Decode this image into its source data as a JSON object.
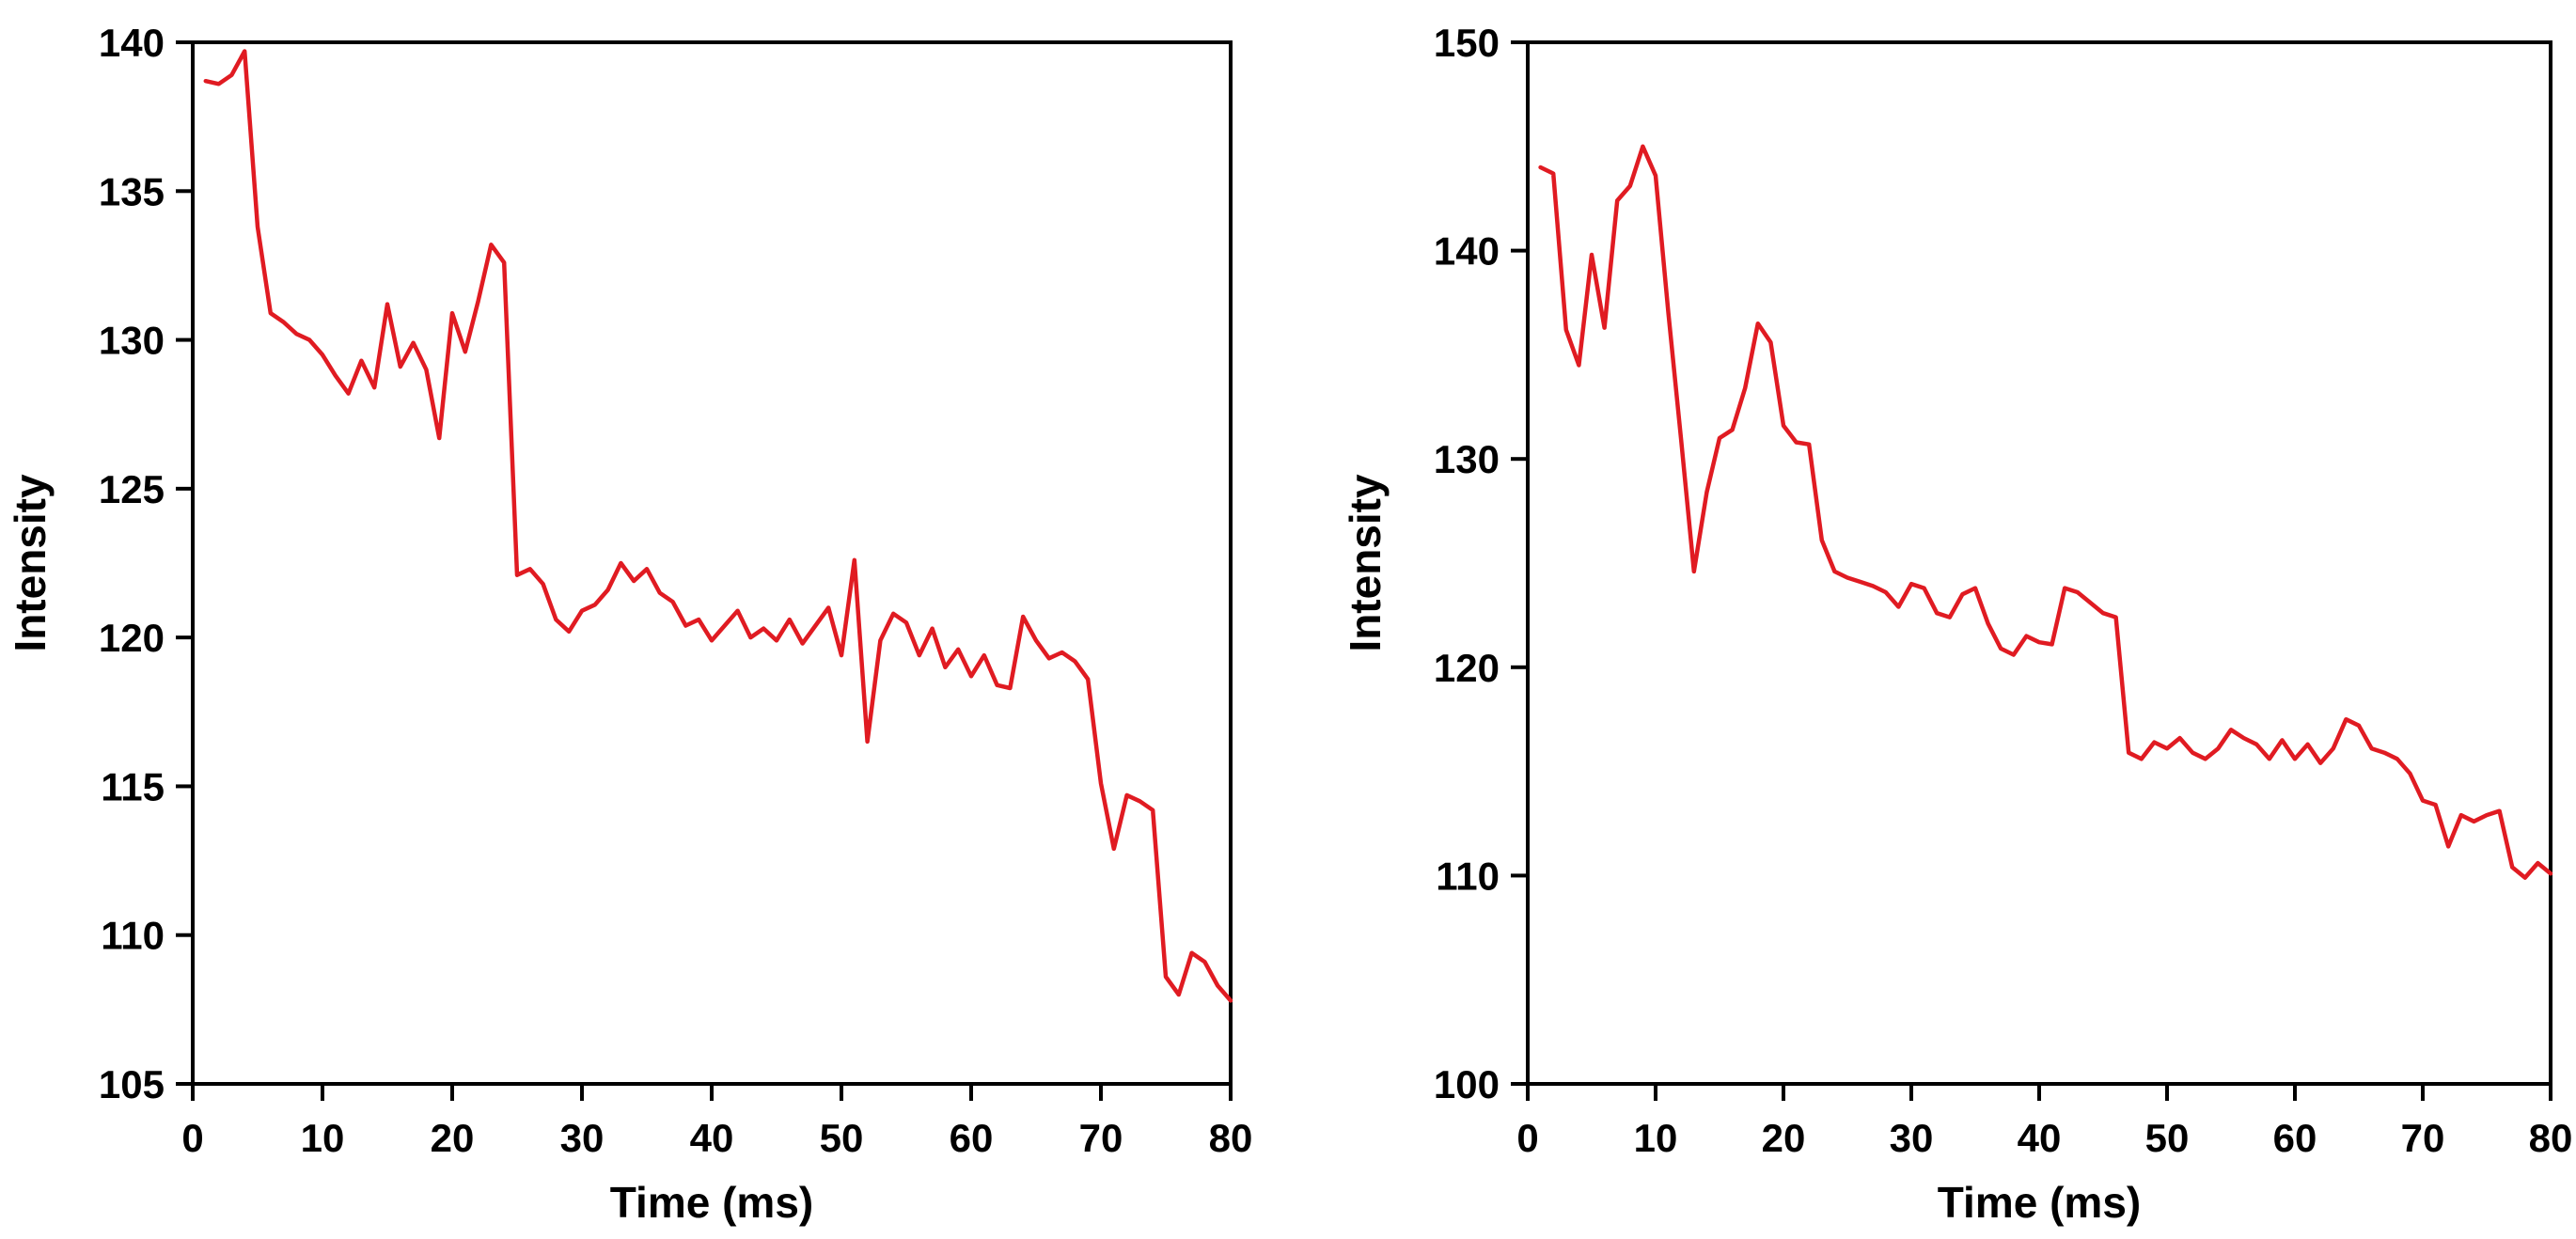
{
  "page": {
    "background_color": "#ffffff",
    "axis_color": "#000000"
  },
  "chart_data": [
    {
      "type": "line",
      "title": "",
      "xlabel": "Time (ms)",
      "ylabel": "Intensity",
      "xlim": [
        0,
        80
      ],
      "ylim": [
        105,
        140
      ],
      "xticks": [
        0,
        10,
        20,
        30,
        40,
        50,
        60,
        70,
        80
      ],
      "yticks": [
        105,
        110,
        115,
        120,
        125,
        130,
        135,
        140
      ],
      "grid": false,
      "legend": false,
      "line_color": "#e01b22",
      "x": [
        1,
        2,
        3,
        4,
        5,
        6,
        7,
        8,
        9,
        10,
        11,
        12,
        13,
        14,
        15,
        16,
        17,
        18,
        19,
        20,
        21,
        22,
        23,
        24,
        25,
        26,
        27,
        28,
        29,
        30,
        31,
        32,
        33,
        34,
        35,
        36,
        37,
        38,
        39,
        40,
        41,
        42,
        43,
        44,
        45,
        46,
        47,
        48,
        49,
        50,
        51,
        52,
        53,
        54,
        55,
        56,
        57,
        58,
        59,
        60,
        61,
        62,
        63,
        64,
        65,
        66,
        67,
        68,
        69,
        70,
        71,
        72,
        73,
        74,
        75,
        76,
        77,
        78,
        79,
        80
      ],
      "y": [
        138.7,
        138.6,
        138.9,
        139.7,
        133.8,
        130.9,
        130.6,
        130.2,
        130.0,
        129.5,
        128.8,
        128.2,
        129.3,
        128.4,
        131.2,
        129.1,
        129.9,
        129.0,
        126.7,
        130.9,
        129.6,
        131.3,
        133.2,
        132.6,
        122.1,
        122.3,
        121.8,
        120.6,
        120.2,
        120.9,
        121.1,
        121.6,
        122.5,
        121.9,
        122.3,
        121.5,
        121.2,
        120.4,
        120.6,
        119.9,
        120.4,
        120.9,
        120.0,
        120.3,
        119.9,
        120.6,
        119.8,
        120.4,
        121.0,
        119.4,
        122.6,
        116.5,
        119.9,
        120.8,
        120.5,
        119.4,
        120.3,
        119.0,
        119.6,
        118.7,
        119.4,
        118.4,
        118.3,
        120.7,
        119.9,
        119.3,
        119.5,
        119.2,
        118.6,
        115.1,
        112.9,
        114.7,
        114.5,
        114.2,
        108.6,
        108.0,
        109.4,
        109.1,
        108.3,
        107.8
      ]
    },
    {
      "type": "line",
      "title": "",
      "xlabel": "Time (ms)",
      "ylabel": "Intensity",
      "xlim": [
        0,
        80
      ],
      "ylim": [
        100,
        150
      ],
      "xticks": [
        0,
        10,
        20,
        30,
        40,
        50,
        60,
        70,
        80
      ],
      "yticks": [
        100,
        110,
        120,
        130,
        140,
        150
      ],
      "grid": false,
      "legend": false,
      "line_color": "#e01b22",
      "x": [
        1,
        2,
        3,
        4,
        5,
        6,
        7,
        8,
        9,
        10,
        11,
        12,
        13,
        14,
        15,
        16,
        17,
        18,
        19,
        20,
        21,
        22,
        23,
        24,
        25,
        26,
        27,
        28,
        29,
        30,
        31,
        32,
        33,
        34,
        35,
        36,
        37,
        38,
        39,
        40,
        41,
        42,
        43,
        44,
        45,
        46,
        47,
        48,
        49,
        50,
        51,
        52,
        53,
        54,
        55,
        56,
        57,
        58,
        59,
        60,
        61,
        62,
        63,
        64,
        65,
        66,
        67,
        68,
        69,
        70,
        71,
        72,
        73,
        74,
        75,
        76,
        77,
        78,
        79,
        80
      ],
      "y": [
        144.0,
        143.7,
        136.2,
        134.5,
        139.8,
        136.3,
        142.4,
        143.1,
        145.0,
        143.6,
        137.0,
        130.9,
        124.6,
        128.4,
        131.0,
        131.4,
        133.4,
        136.5,
        135.6,
        131.6,
        130.8,
        130.7,
        126.1,
        124.6,
        124.3,
        124.1,
        123.9,
        123.6,
        122.9,
        124.0,
        123.8,
        122.6,
        122.4,
        123.5,
        123.8,
        122.1,
        120.9,
        120.6,
        121.5,
        121.2,
        121.1,
        123.8,
        123.6,
        123.1,
        122.6,
        122.4,
        115.9,
        115.6,
        116.4,
        116.1,
        116.6,
        115.9,
        115.6,
        116.1,
        117.0,
        116.6,
        116.3,
        115.6,
        116.5,
        115.6,
        116.3,
        115.4,
        116.1,
        117.5,
        117.2,
        116.1,
        115.9,
        115.6,
        114.9,
        113.6,
        113.4,
        111.4,
        112.9,
        112.6,
        112.9,
        113.1,
        110.4,
        109.9,
        110.6,
        110.1
      ]
    }
  ]
}
